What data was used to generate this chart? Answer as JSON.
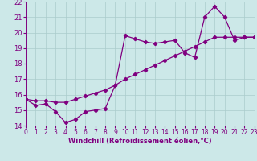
{
  "xlabel": "Windchill (Refroidissement éolien,°C)",
  "line1_x": [
    0,
    1,
    2,
    3,
    4,
    5,
    6,
    7,
    8,
    9,
    10,
    11,
    12,
    13,
    14,
    15,
    16,
    17,
    18,
    19,
    20,
    21,
    22,
    23
  ],
  "line1_y": [
    15.7,
    15.3,
    15.4,
    14.9,
    14.2,
    14.4,
    14.9,
    15.0,
    15.1,
    16.6,
    19.8,
    19.6,
    19.4,
    19.3,
    19.4,
    19.5,
    18.7,
    18.4,
    21.0,
    21.7,
    21.0,
    19.5,
    19.7,
    19.7
  ],
  "line2_x": [
    0,
    1,
    2,
    3,
    4,
    5,
    6,
    7,
    8,
    9,
    10,
    11,
    12,
    13,
    14,
    15,
    16,
    17,
    18,
    19,
    20,
    21,
    22,
    23
  ],
  "line2_y": [
    15.7,
    15.6,
    15.6,
    15.5,
    15.5,
    15.7,
    15.9,
    16.1,
    16.3,
    16.6,
    17.0,
    17.3,
    17.6,
    17.9,
    18.2,
    18.5,
    18.8,
    19.1,
    19.4,
    19.7,
    19.7,
    19.7,
    19.7,
    19.7
  ],
  "line_color": "#800080",
  "marker": "D",
  "marker_size": 2.2,
  "xlim": [
    0,
    23
  ],
  "ylim": [
    14,
    22
  ],
  "yticks": [
    14,
    15,
    16,
    17,
    18,
    19,
    20,
    21,
    22
  ],
  "xticks": [
    0,
    1,
    2,
    3,
    4,
    5,
    6,
    7,
    8,
    9,
    10,
    11,
    12,
    13,
    14,
    15,
    16,
    17,
    18,
    19,
    20,
    21,
    22,
    23
  ],
  "bg_color": "#cce8e8",
  "grid_color": "#aacccc",
  "label_color": "#800080",
  "linewidth": 0.9,
  "tick_fontsize": 5.5,
  "xlabel_fontsize": 6.0
}
